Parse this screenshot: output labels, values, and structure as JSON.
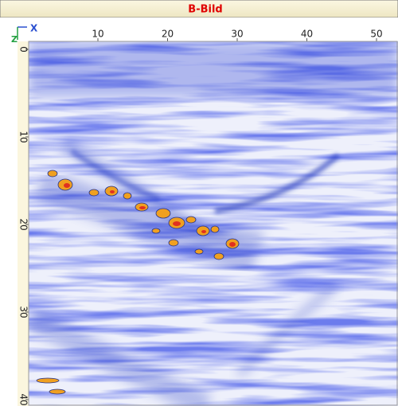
{
  "header": {
    "title": "B-Bild"
  },
  "axes": {
    "corner": {
      "x": "X",
      "z": "Z"
    },
    "top_ticks": [
      10,
      20,
      30,
      40,
      50
    ],
    "left_ticks": [
      0,
      10,
      20,
      30,
      40
    ]
  }
}
